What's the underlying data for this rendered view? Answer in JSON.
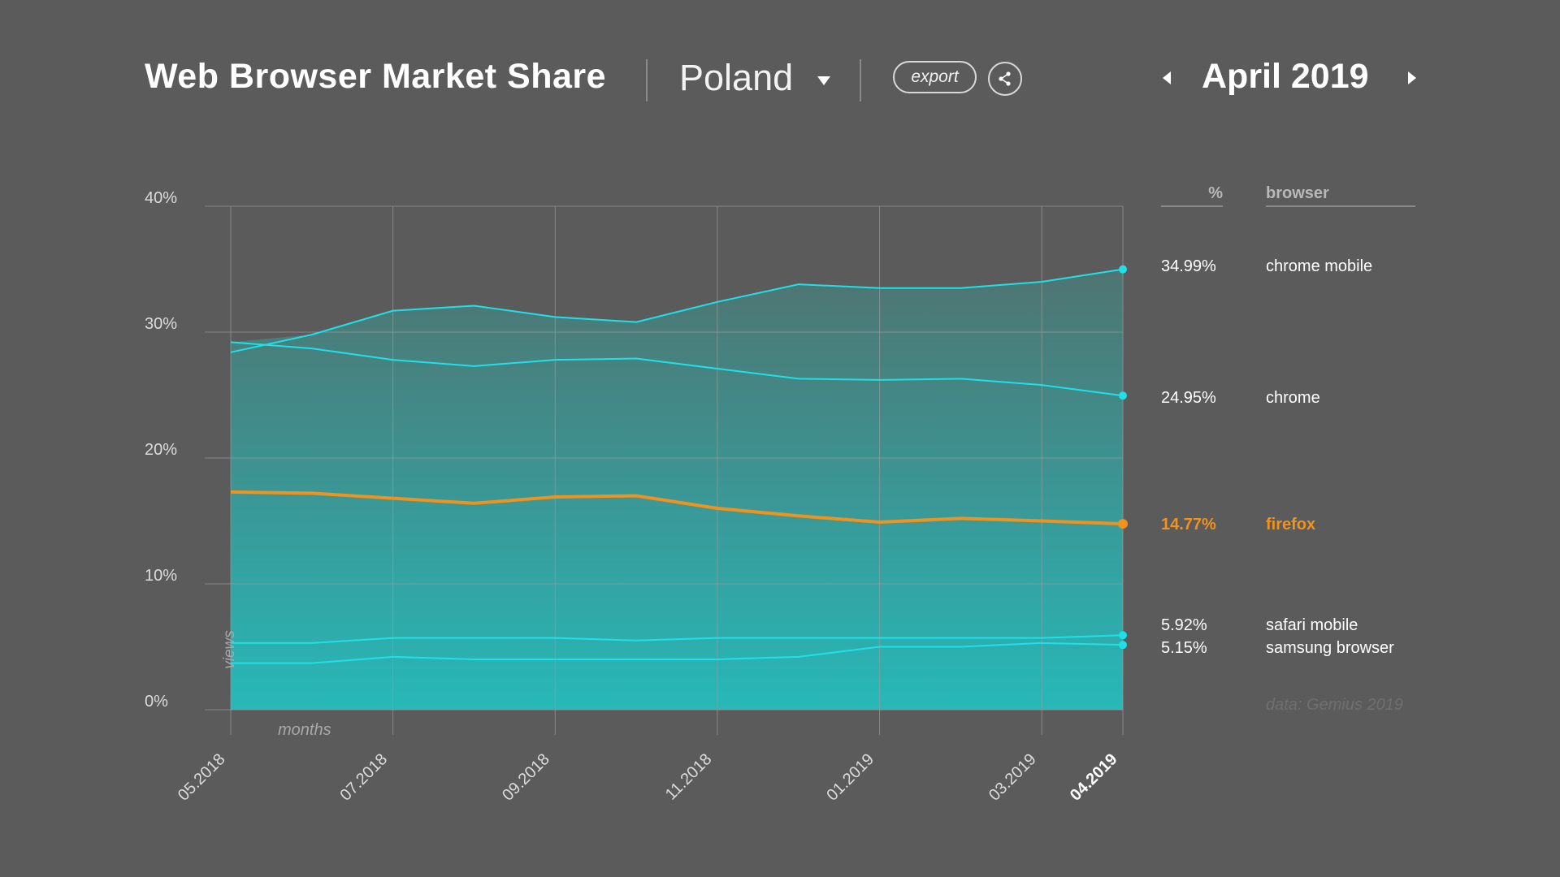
{
  "header": {
    "title": "Web Browser Market Share",
    "country": "Poland",
    "export_label": "export",
    "month": "April 2019"
  },
  "icons": {
    "country_dropdown": "caret-down-icon",
    "share": "share-icon",
    "prev": "arrow-left-icon",
    "next": "arrow-right-icon"
  },
  "legend": {
    "pct_header": "%",
    "browser_header": "browser",
    "source": "data: Gemius 2019"
  },
  "colors": {
    "background": "#5b5b5b",
    "line": "#1fe0e8",
    "highlight": "#f0921e",
    "area_top": "#4f7471",
    "area_bottom": "#27b8b8"
  },
  "chart_data": {
    "type": "line",
    "ylim": [
      0,
      40
    ],
    "yticks": [
      "0%",
      "10%",
      "20%",
      "30%",
      "40%"
    ],
    "ylabel": "views",
    "xlabel": "months",
    "x": [
      "05.2018",
      "06.2018",
      "07.2018",
      "08.2018",
      "09.2018",
      "10.2018",
      "11.2018",
      "12.2018",
      "01.2019",
      "02.2019",
      "03.2019",
      "04.2019"
    ],
    "xtick_labels": [
      "05.2018",
      "07.2018",
      "09.2018",
      "11.2018",
      "01.2019",
      "03.2019",
      "04.2019"
    ],
    "current_label": "04.2019",
    "series": [
      {
        "name": "chrome mobile",
        "latest": "34.99%",
        "values": [
          28.4,
          29.8,
          31.7,
          32.1,
          31.2,
          30.8,
          32.4,
          33.8,
          33.5,
          33.5,
          34.0,
          34.99
        ]
      },
      {
        "name": "chrome",
        "latest": "24.95%",
        "values": [
          29.2,
          28.7,
          27.8,
          27.3,
          27.8,
          27.9,
          27.1,
          26.3,
          26.2,
          26.3,
          25.8,
          24.95
        ]
      },
      {
        "name": "firefox",
        "latest": "14.77%",
        "highlight": true,
        "values": [
          17.3,
          17.2,
          16.8,
          16.4,
          16.9,
          17.0,
          16.0,
          15.4,
          14.9,
          15.2,
          15.0,
          14.77
        ]
      },
      {
        "name": "safari mobile",
        "latest": "5.92%",
        "values": [
          5.3,
          5.3,
          5.7,
          5.7,
          5.7,
          5.5,
          5.7,
          5.7,
          5.7,
          5.7,
          5.7,
          5.92
        ]
      },
      {
        "name": "samsung browser",
        "latest": "5.15%",
        "values": [
          3.7,
          3.7,
          4.2,
          4.0,
          4.0,
          4.0,
          4.0,
          4.2,
          5.0,
          5.0,
          5.3,
          5.15
        ]
      }
    ]
  }
}
